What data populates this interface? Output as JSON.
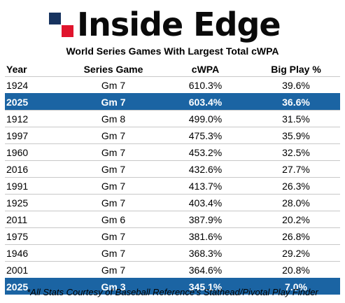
{
  "brand": {
    "logo_text": "Inside Edge",
    "colors": {
      "navy": "#17335f",
      "red": "#e0142d"
    }
  },
  "title": "World Series Games With Largest Total cWPA",
  "table": {
    "headers": {
      "year": "Year",
      "game": "Series Game",
      "cwpa": "cWPA",
      "big_play": "Big Play %"
    },
    "highlight_color": "#1b64a3",
    "rows": [
      {
        "year": "1924",
        "game": "Gm 7",
        "cwpa": "610.3%",
        "big_play": "39.6%",
        "highlighted": false
      },
      {
        "year": "2025",
        "game": "Gm 7",
        "cwpa": "603.4%",
        "big_play": "36.6%",
        "highlighted": true
      },
      {
        "year": "1912",
        "game": "Gm 8",
        "cwpa": "499.0%",
        "big_play": "31.5%",
        "highlighted": false
      },
      {
        "year": "1997",
        "game": "Gm 7",
        "cwpa": "475.3%",
        "big_play": "35.9%",
        "highlighted": false
      },
      {
        "year": "1960",
        "game": "Gm 7",
        "cwpa": "453.2%",
        "big_play": "32.5%",
        "highlighted": false
      },
      {
        "year": "2016",
        "game": "Gm 7",
        "cwpa": "432.6%",
        "big_play": "27.7%",
        "highlighted": false
      },
      {
        "year": "1991",
        "game": "Gm 7",
        "cwpa": "413.7%",
        "big_play": "26.3%",
        "highlighted": false
      },
      {
        "year": "1925",
        "game": "Gm 7",
        "cwpa": "403.4%",
        "big_play": "28.0%",
        "highlighted": false
      },
      {
        "year": "2011",
        "game": "Gm 6",
        "cwpa": "387.9%",
        "big_play": "20.2%",
        "highlighted": false
      },
      {
        "year": "1975",
        "game": "Gm 7",
        "cwpa": "381.6%",
        "big_play": "26.8%",
        "highlighted": false
      },
      {
        "year": "1946",
        "game": "Gm 7",
        "cwpa": "368.3%",
        "big_play": "29.2%",
        "highlighted": false
      },
      {
        "year": "2001",
        "game": "Gm 7",
        "cwpa": "364.6%",
        "big_play": "20.8%",
        "highlighted": false
      },
      {
        "year": "2025",
        "game": "Gm 3",
        "cwpa": "345.1%",
        "big_play": "7.0%",
        "highlighted": true
      }
    ]
  },
  "footnote": "*All Stats Courtesy of Baseball Reference's Stathead/Pivotal Play Finder"
}
